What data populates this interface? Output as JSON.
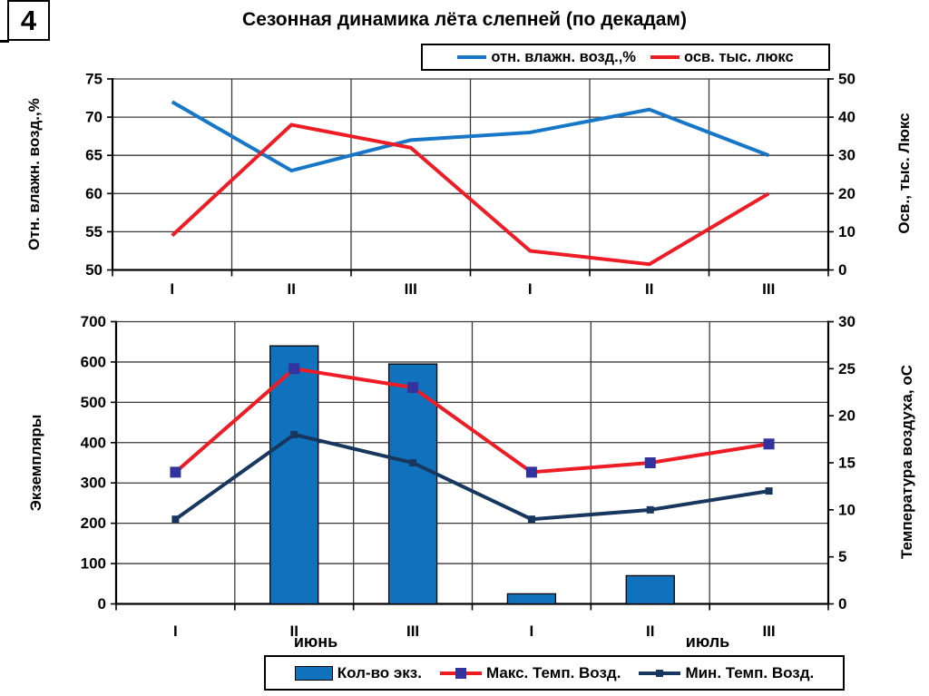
{
  "slide": {
    "number": "4",
    "title": "Сезонная динамика лёта слепней (по декадам)"
  },
  "chart_data": [
    {
      "type": "line",
      "categories": [
        "I",
        "II",
        "III",
        "I",
        "II",
        "III"
      ],
      "series": [
        {
          "name": "отн. влажн. возд.,%",
          "axis": "left",
          "color": "#1777C6",
          "values": [
            72,
            63,
            67,
            68,
            71,
            65
          ]
        },
        {
          "name": "осв. тыс. люкс",
          "axis": "right",
          "color": "#EE1C25",
          "values": [
            9,
            38,
            32,
            5,
            1.5,
            20
          ]
        }
      ],
      "left_axis": {
        "label": "Отн. влажн. возд.,%",
        "min": 50,
        "max": 75,
        "ticks": [
          75,
          70,
          65,
          60,
          55,
          50
        ]
      },
      "right_axis": {
        "label": "Осв., тыс. Люкс",
        "min": 0,
        "max": 50,
        "ticks": [
          50,
          40,
          30,
          20,
          10,
          0
        ]
      },
      "grid": true,
      "legend_position": "top"
    },
    {
      "type": "bar+line",
      "categories": [
        "I",
        "II",
        "III",
        "I",
        "II",
        "III"
      ],
      "month_labels": [
        "июнь",
        "июль"
      ],
      "series": [
        {
          "name": "Кол-во экз.",
          "type": "bar",
          "axis": "left",
          "color": "#1072BC",
          "values": [
            0,
            640,
            595,
            25,
            70,
            0
          ]
        },
        {
          "name": "Макс. Темп. Возд.",
          "type": "line",
          "axis": "right",
          "color": "#EE1C25",
          "marker_color": "#3333A0",
          "marker_size": 12,
          "values": [
            14,
            25,
            23,
            14,
            15,
            17
          ]
        },
        {
          "name": "Мин. Темп. Возд.",
          "type": "line",
          "axis": "right",
          "color": "#17375E",
          "marker_color": "#17375E",
          "marker_size": 8,
          "values": [
            9,
            18,
            15,
            9,
            10,
            12
          ]
        }
      ],
      "left_axis": {
        "label": "Экземпляры",
        "min": 0,
        "max": 700,
        "ticks": [
          700,
          600,
          500,
          400,
          300,
          200,
          100,
          0
        ]
      },
      "right_axis": {
        "label": "Температура воздуха, оС",
        "min": 0,
        "max": 30,
        "ticks": [
          30,
          25,
          20,
          15,
          10,
          5,
          0
        ]
      },
      "grid": true,
      "legend_position": "bottom"
    }
  ]
}
